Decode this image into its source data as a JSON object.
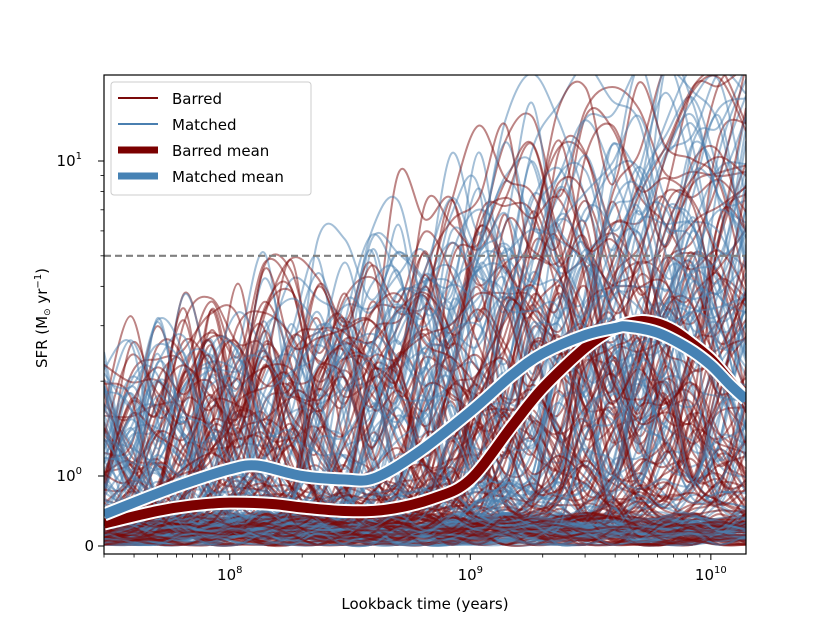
{
  "chart_data": {
    "type": "line",
    "xlabel": "Lookback time (years)",
    "ylabel_main": "SFR (M",
    "ylabel_sun": "⊙",
    "ylabel_unit": " yr",
    "ylabel_exp": "−1",
    "ylabel_close": ")",
    "x_scale": "log",
    "y_scale": "symlog",
    "xlim": [
      30000000,
      14000000000
    ],
    "ylim": [
      0,
      20
    ],
    "x_tick_labels": [
      {
        "value": 100000000,
        "base": "10",
        "exp": "8"
      },
      {
        "value": 1000000000,
        "base": "10",
        "exp": "9"
      },
      {
        "value": 10000000000,
        "base": "10",
        "exp": "10"
      }
    ],
    "y_tick_labels": [
      {
        "value": 0,
        "base": "0",
        "exp": ""
      },
      {
        "value": 1,
        "base": "10",
        "exp": "0"
      },
      {
        "value": 10,
        "base": "10",
        "exp": "1"
      }
    ],
    "threshold_line": {
      "y": 5,
      "color": "#808080",
      "style": "dashed"
    },
    "legend": {
      "placement": "top-left",
      "entries": [
        {
          "label": "Barred",
          "color": "#7b0a0a",
          "style": "thin"
        },
        {
          "label": "Matched",
          "color": "#4a7fb0",
          "style": "thin"
        },
        {
          "label": "Barred mean",
          "color": "#7b0000",
          "style": "thick"
        },
        {
          "label": "Matched mean",
          "color": "#4682b4",
          "style": "thick"
        }
      ]
    },
    "series": [
      {
        "name": "Barred mean",
        "color": "#7b0000",
        "x": [
          30000000,
          50000000,
          70000000,
          100000000,
          150000000,
          200000000,
          300000000,
          450000000,
          700000000,
          1000000000,
          1500000000,
          2000000000,
          3000000000,
          4000000000,
          5000000000,
          6000000000,
          7000000000,
          8000000000,
          10000000000,
          12000000000,
          14000000000
        ],
        "y": [
          0.32,
          0.5,
          0.58,
          0.62,
          0.6,
          0.55,
          0.5,
          0.52,
          0.68,
          0.95,
          1.45,
          1.9,
          2.55,
          2.95,
          3.1,
          3.05,
          2.9,
          2.7,
          2.35,
          2.0,
          1.75
        ]
      },
      {
        "name": "Matched mean",
        "color": "#4682b4",
        "x": [
          30000000,
          50000000,
          70000000,
          100000000,
          130000000,
          200000000,
          300000000,
          400000000,
          600000000,
          1000000000,
          1500000000,
          2000000000,
          3000000000,
          4000000000,
          4500000000,
          6000000000,
          8000000000,
          10000000000,
          12000000000,
          14000000000
        ],
        "y": [
          0.45,
          0.75,
          0.93,
          1.05,
          1.08,
          1.0,
          0.95,
          0.97,
          1.18,
          1.6,
          2.1,
          2.45,
          2.8,
          2.95,
          2.98,
          2.85,
          2.55,
          2.25,
          1.95,
          1.75
        ]
      }
    ]
  }
}
